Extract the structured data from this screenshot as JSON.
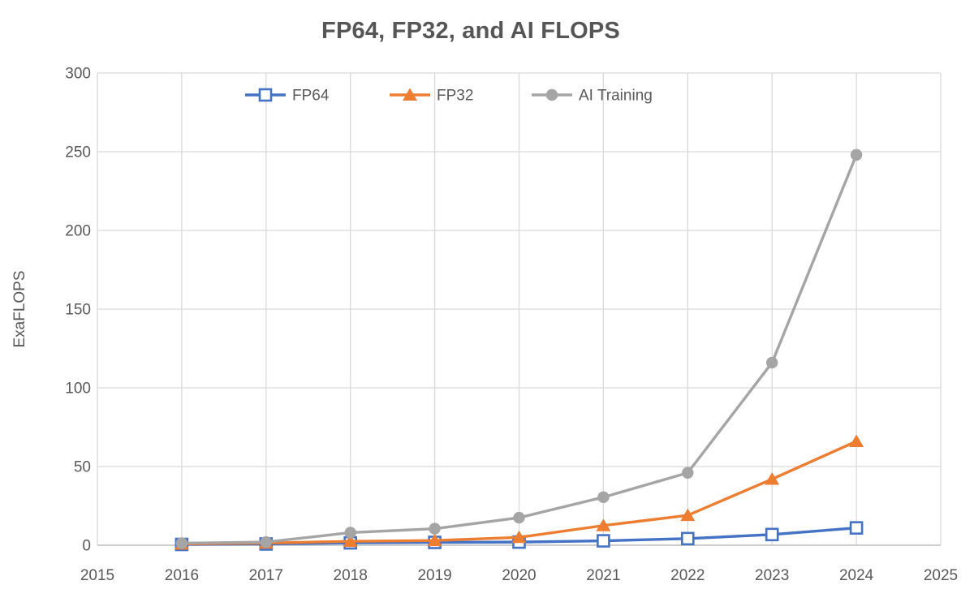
{
  "chart_data": {
    "type": "line",
    "title": "FP64, FP32, and AI FLOPS",
    "xlabel": "",
    "ylabel": "ExaFLOPS",
    "x": [
      2016,
      2017,
      2018,
      2019,
      2020,
      2021,
      2022,
      2023,
      2024
    ],
    "series": [
      {
        "name": "FP64",
        "color": "#4472C4",
        "marker": "square-open",
        "values": [
          0.5,
          0.8,
          1.5,
          1.8,
          2.0,
          2.8,
          4.2,
          6.8,
          11
        ]
      },
      {
        "name": "FP32",
        "color": "#ED7D31",
        "marker": "triangle",
        "values": [
          0.8,
          1.4,
          2.5,
          3.0,
          5.0,
          12.5,
          19,
          42,
          66
        ]
      },
      {
        "name": "AI Training",
        "color": "#A5A5A5",
        "marker": "circle",
        "values": [
          1.3,
          2.0,
          8.0,
          10.5,
          17.5,
          30.5,
          46,
          116,
          248
        ]
      }
    ],
    "xlim": [
      2015,
      2025
    ],
    "ylim": [
      0,
      300
    ],
    "x_ticks": [
      "2015",
      "2016",
      "2017",
      "2018",
      "2019",
      "2020",
      "2021",
      "2022",
      "2023",
      "2024",
      "2025"
    ],
    "y_ticks": [
      "0",
      "50",
      "100",
      "150",
      "200",
      "250",
      "300"
    ],
    "grid": true,
    "legend_position": "top-inside",
    "legend_entries": [
      "FP64",
      "FP32",
      "AI Training"
    ],
    "colors": {
      "grid": "#D9D9D9",
      "axis": "#BFBFBF",
      "tick_text": "#595959",
      "title_text": "#565656"
    }
  }
}
